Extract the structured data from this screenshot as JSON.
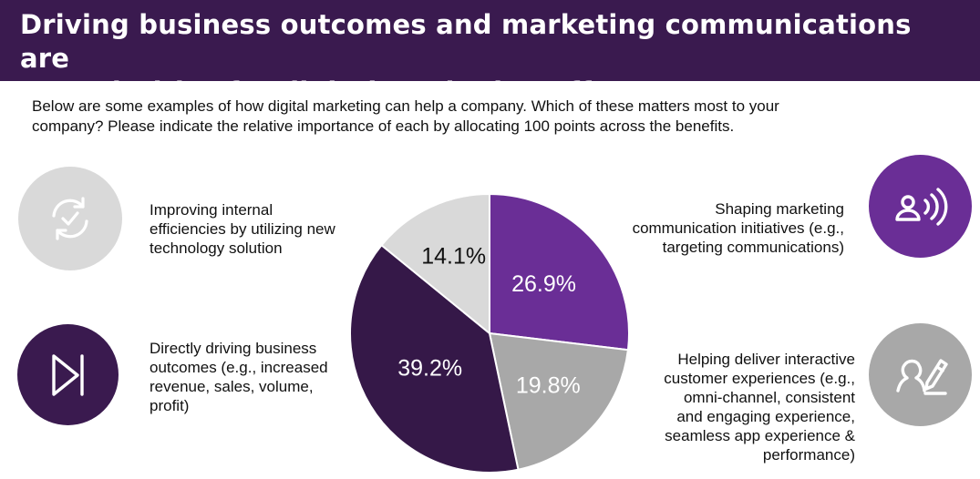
{
  "header": {
    "title_line1": "Driving business outcomes and marketing communications are",
    "title_line2": "top priorities for digital marketing efforts"
  },
  "question": {
    "line1": "Below are some examples of how digital marketing can help a company. Which of these matters most to your",
    "line2": "company? Please indicate the relative importance of each by allocating 100 points across the benefits."
  },
  "benefits": [
    {
      "icon": "refresh-check-icon",
      "lines": [
        "Improving internal",
        "efficiencies by utilizing new",
        "technology solution"
      ]
    },
    {
      "icon": "skip-forward-icon",
      "lines": [
        "Directly driving business",
        "outcomes (e.g., increased",
        "revenue, sales, volume,",
        "profit)"
      ]
    },
    {
      "icon": "person-broadcast-icon",
      "lines": [
        "Shaping marketing",
        "communication initiatives (e.g.,",
        "targeting communications)"
      ]
    },
    {
      "icon": "person-pencil-icon",
      "lines": [
        "Helping deliver interactive",
        "customer experiences (e.g.,",
        "omni-channel, consistent",
        "and engaging experience,",
        "seamless app experience &",
        "performance)"
      ]
    }
  ],
  "colors": {
    "header_bg": "#3a1a4f",
    "purple": "#6a2e96",
    "dark_purple": "#351848",
    "gray": "#a8a8a8",
    "light_gray": "#d9d9d9"
  },
  "chart_data": {
    "type": "pie",
    "start_angle_deg": 0,
    "direction": "clockwise",
    "slices": [
      {
        "label": "26.9%",
        "value": 26.9,
        "color": "#6a2e96",
        "text_color": "#ffffff"
      },
      {
        "label": "19.8%",
        "value": 19.8,
        "color": "#a8a8a8",
        "text_color": "#ffffff"
      },
      {
        "label": "39.2%",
        "value": 39.2,
        "color": "#351848",
        "text_color": "#ffffff"
      },
      {
        "label": "14.1%",
        "value": 14.1,
        "color": "#d9d9d9",
        "text_color": "#111111"
      }
    ]
  }
}
